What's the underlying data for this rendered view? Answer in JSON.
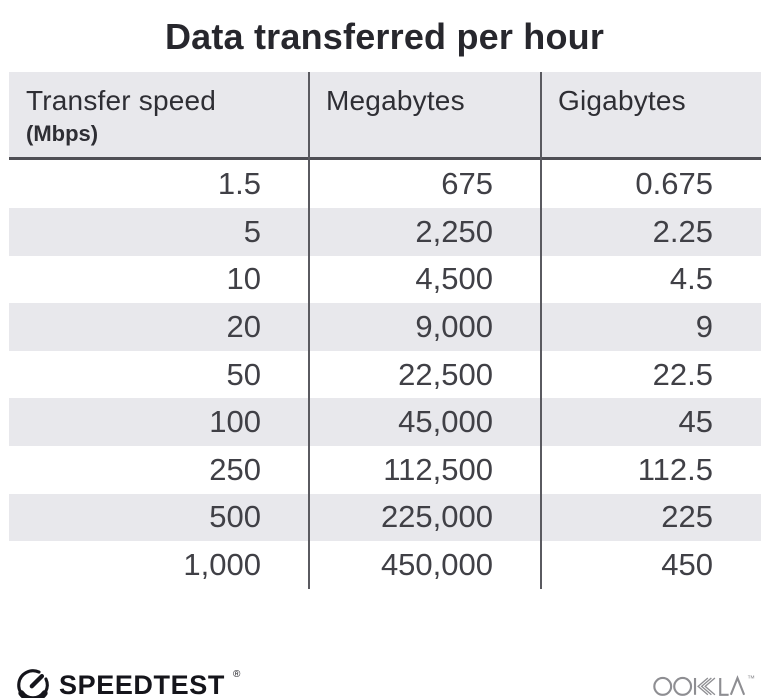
{
  "title": "Data transferred per hour",
  "table": {
    "columns": [
      {
        "label": "Transfer speed",
        "sublabel": "(Mbps)"
      },
      {
        "label": "Megabytes",
        "sublabel": ""
      },
      {
        "label": "Gigabytes",
        "sublabel": ""
      }
    ],
    "rows": [
      [
        "1.5",
        "675",
        "0.675"
      ],
      [
        "5",
        "2,250",
        "2.25"
      ],
      [
        "10",
        "4,500",
        "4.5"
      ],
      [
        "20",
        "9,000",
        "9"
      ],
      [
        "50",
        "22,500",
        "22.5"
      ],
      [
        "100",
        "45,000",
        "45"
      ],
      [
        "250",
        "112,500",
        "112.5"
      ],
      [
        "500",
        "225,000",
        "225"
      ],
      [
        "1,000",
        "450,000",
        "450"
      ]
    ]
  },
  "footer": {
    "speedtest_label": "SPEEDTEST",
    "speedtest_trademark": "®",
    "ookla_label": "OOKLA",
    "ookla_trademark": "™"
  },
  "colors": {
    "band_gray": "#e8e8ec",
    "header_border": "#4f4f55",
    "column_divider": "#5a5a60",
    "title_text": "#27272d",
    "cell_text": "#404046",
    "speedtest_black": "#15151b",
    "ookla_gray": "#8e8e92"
  },
  "chart_data": {
    "type": "table",
    "title": "Data transferred per hour",
    "columns": [
      "Transfer speed (Mbps)",
      "Megabytes",
      "Gigabytes"
    ],
    "rows": [
      [
        1.5,
        675,
        0.675
      ],
      [
        5,
        2250,
        2.25
      ],
      [
        10,
        4500,
        4.5
      ],
      [
        20,
        9000,
        9
      ],
      [
        50,
        22500,
        22.5
      ],
      [
        100,
        45000,
        45
      ],
      [
        250,
        112500,
        112.5
      ],
      [
        500,
        225000,
        225
      ],
      [
        1000,
        450000,
        450
      ]
    ]
  }
}
